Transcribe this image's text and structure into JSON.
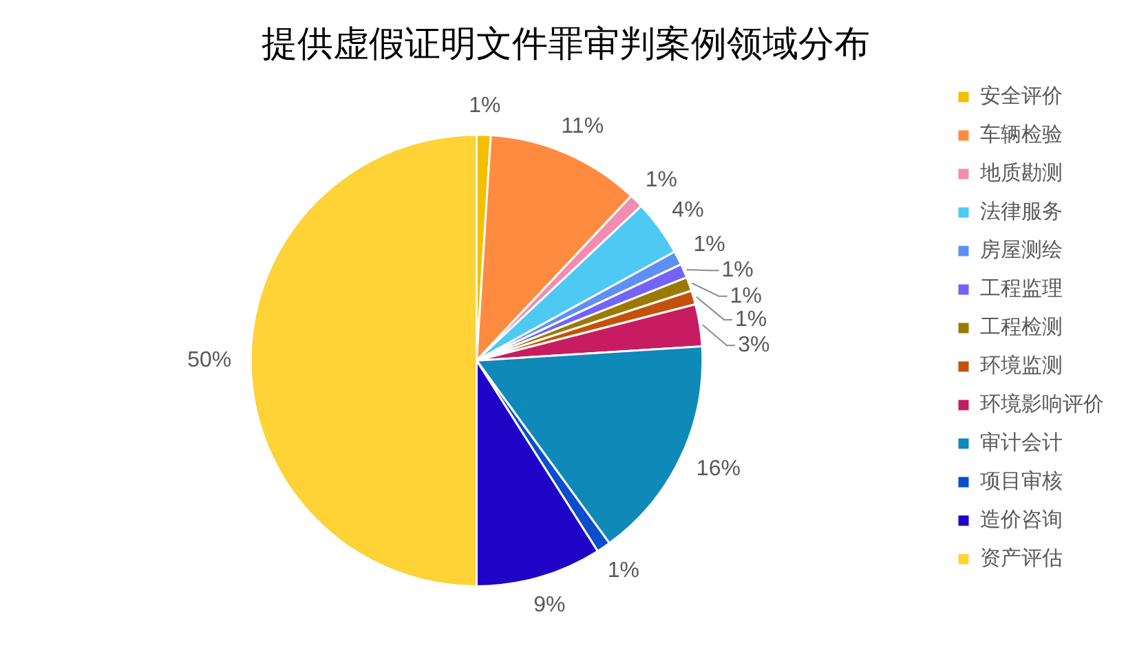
{
  "chart_data": {
    "type": "pie",
    "title": "提供虚假证明文件罪审判案例领域分布",
    "categories": [
      "安全评价",
      "车辆检验",
      "地质勘测",
      "法律服务",
      "房屋测绘",
      "工程监理",
      "工程检测",
      "环境监测",
      "环境影响评价",
      "审计会计",
      "项目审核",
      "造价咨询",
      "资产评估"
    ],
    "values": [
      1,
      11,
      1,
      4,
      1,
      1,
      1,
      1,
      3,
      16,
      1,
      9,
      50
    ],
    "value_labels": [
      "1%",
      "11%",
      "1%",
      "4%",
      "1%",
      "1%",
      "1%",
      "1%",
      "3%",
      "16%",
      "1%",
      "9%",
      "50%"
    ],
    "colors": [
      "#f5be00",
      "#ff8b40",
      "#f28cb1",
      "#4ec9f3",
      "#5e8ff5",
      "#7363f7",
      "#9a7b00",
      "#c4510b",
      "#c81c62",
      "#0f89b8",
      "#0b4dcc",
      "#1f03c6",
      "#ffd236"
    ],
    "legend": "right"
  }
}
